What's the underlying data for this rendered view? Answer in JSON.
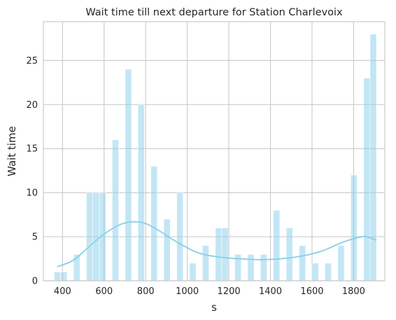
{
  "chart_data": {
    "type": "bar",
    "title": "Wait time till next departure for Station Charlevoix",
    "xlabel": "s",
    "ylabel": "Wait time",
    "xlim": [
      308,
      1950
    ],
    "ylim": [
      0,
      29.4
    ],
    "xticks": [
      400,
      600,
      800,
      1000,
      1200,
      1400,
      1600,
      1800
    ],
    "yticks": [
      0,
      5,
      10,
      15,
      20,
      25
    ],
    "grid": true,
    "bar_color": "#87ceeb",
    "bar_opacity": 0.5,
    "kde_color": "#87ceeb",
    "bin_width": 31,
    "bars": [
      {
        "x": 360,
        "value": 1
      },
      {
        "x": 391,
        "value": 1
      },
      {
        "x": 453,
        "value": 3
      },
      {
        "x": 515,
        "value": 10
      },
      {
        "x": 546,
        "value": 10
      },
      {
        "x": 577,
        "value": 10
      },
      {
        "x": 639,
        "value": 16
      },
      {
        "x": 701,
        "value": 24
      },
      {
        "x": 763,
        "value": 20
      },
      {
        "x": 825,
        "value": 13
      },
      {
        "x": 887,
        "value": 7
      },
      {
        "x": 949,
        "value": 10
      },
      {
        "x": 1011,
        "value": 2
      },
      {
        "x": 1073,
        "value": 4
      },
      {
        "x": 1135,
        "value": 6
      },
      {
        "x": 1166,
        "value": 6
      },
      {
        "x": 1228,
        "value": 3
      },
      {
        "x": 1290,
        "value": 3
      },
      {
        "x": 1352,
        "value": 3
      },
      {
        "x": 1414,
        "value": 8
      },
      {
        "x": 1476,
        "value": 6
      },
      {
        "x": 1538,
        "value": 4
      },
      {
        "x": 1600,
        "value": 2
      },
      {
        "x": 1662,
        "value": 2
      },
      {
        "x": 1724,
        "value": 4
      },
      {
        "x": 1786,
        "value": 12
      },
      {
        "x": 1848,
        "value": 23
      },
      {
        "x": 1879,
        "value": 28
      }
    ],
    "kde": {
      "x": [
        375,
        450,
        520,
        600,
        680,
        740,
        800,
        870,
        950,
        1050,
        1150,
        1250,
        1350,
        1450,
        1550,
        1650,
        1750,
        1820,
        1860,
        1910
      ],
      "y": [
        1.6,
        2.3,
        3.7,
        5.3,
        6.4,
        6.7,
        6.5,
        5.6,
        4.4,
        3.2,
        2.7,
        2.5,
        2.4,
        2.5,
        2.8,
        3.4,
        4.4,
        4.9,
        5.0,
        4.6
      ]
    }
  }
}
